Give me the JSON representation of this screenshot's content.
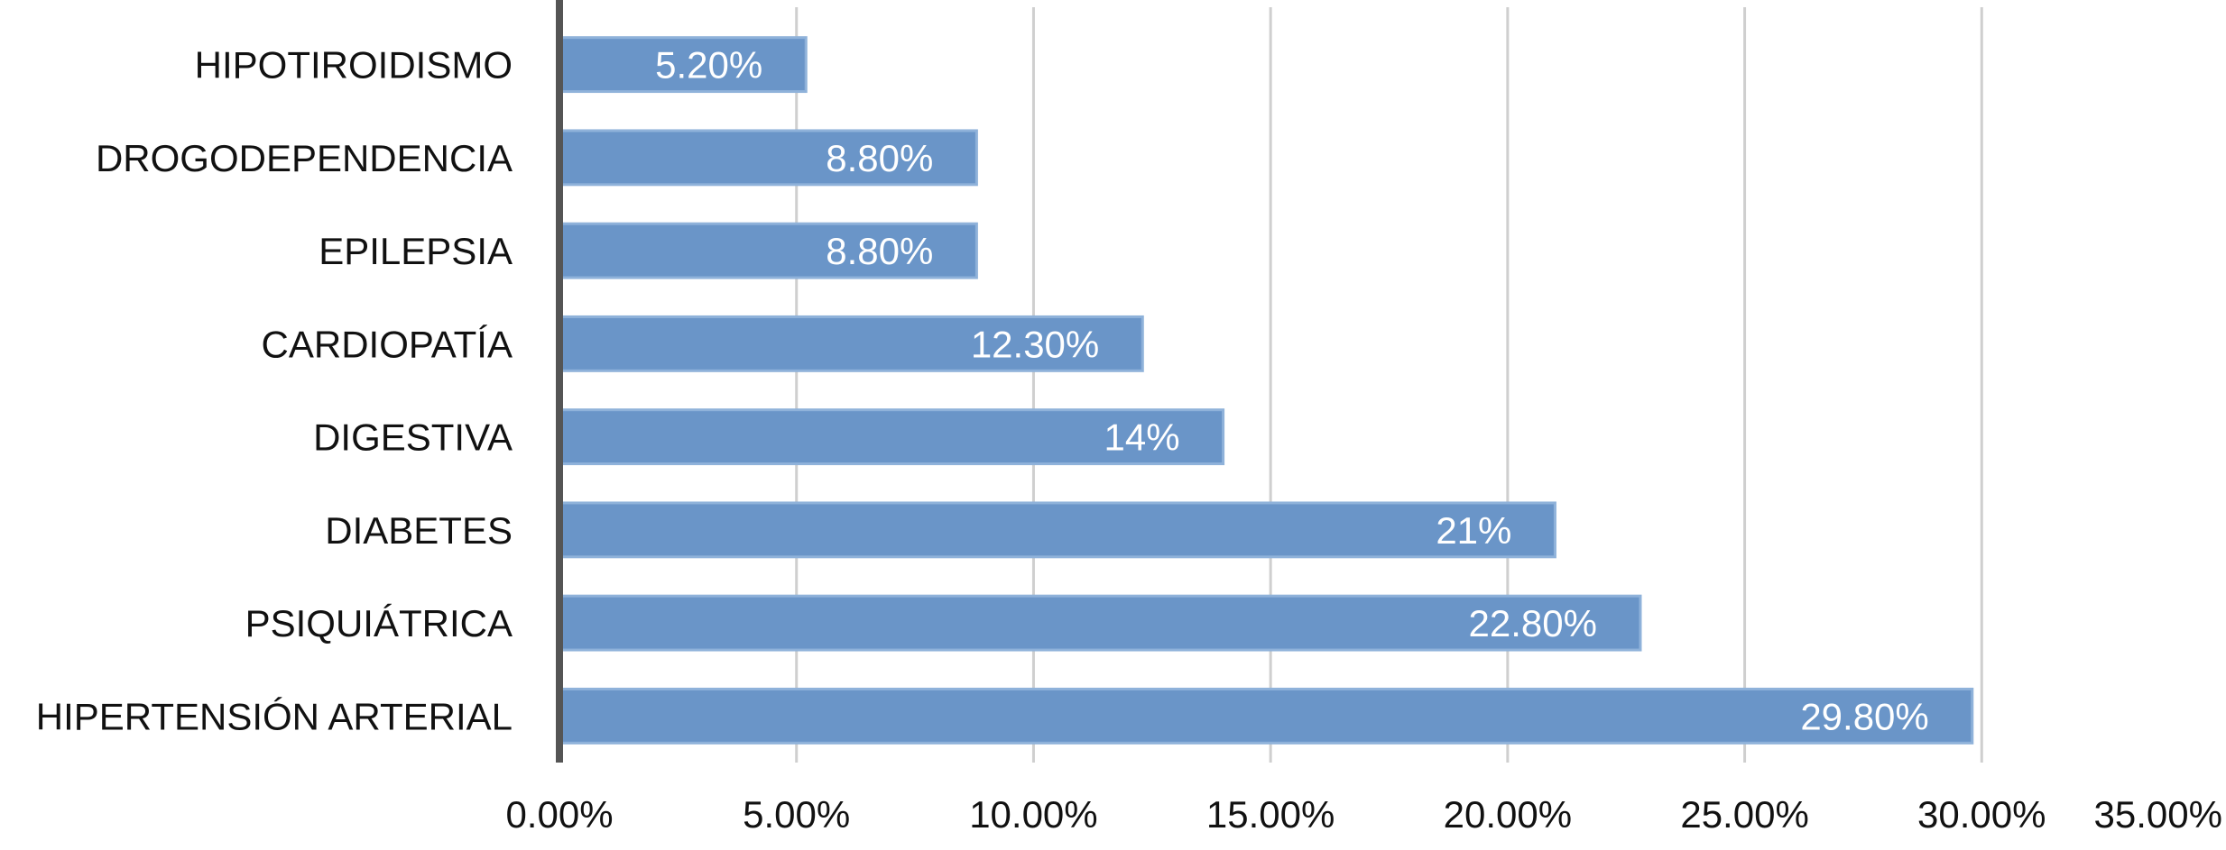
{
  "chart_data": {
    "type": "bar",
    "orientation": "horizontal",
    "title": "",
    "xlabel": "",
    "ylabel": "",
    "categories": [
      "HIPOTIROIDISMO",
      "DROGODEPENDENCIA",
      "EPILEPSIA",
      "CARDIOPATÍA",
      "DIGESTIVA",
      "DIABETES",
      "PSIQUIÁTRICA",
      "HIPERTENSIÓN ARTERIAL"
    ],
    "values": [
      5.2,
      8.8,
      8.8,
      12.3,
      14,
      21,
      22.8,
      29.8
    ],
    "data_labels": [
      "5.20%",
      "8.80%",
      "8.80%",
      "12.30%",
      "14%",
      "21%",
      "22.80%",
      "29.80%"
    ],
    "xlim": [
      0,
      35
    ],
    "xticks": [
      0,
      5,
      10,
      15,
      20,
      25,
      30,
      35
    ],
    "xtick_labels": [
      "0.00%",
      "5.00%",
      "10.00%",
      "15.00%",
      "20.00%",
      "25.00%",
      "30.00%",
      "35.00%"
    ],
    "grid": "vertical",
    "legend": "none",
    "colors": {
      "bar": "#6a95c8",
      "bar_edge": "#8fb2da",
      "gridline": "#cfcfcf",
      "axis": "#555555",
      "data_label": "#ffffff",
      "text": "#111111"
    }
  }
}
